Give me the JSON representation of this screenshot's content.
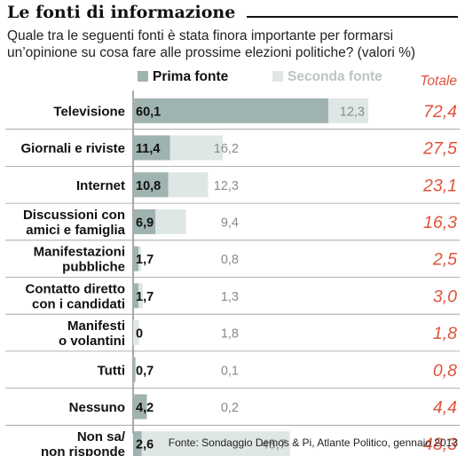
{
  "header": {
    "title": "Le fonti di informazione",
    "subtitle": "Quale tra le seguenti fonti è stata finora importante per formarsi un’opinione su cosa fare alle prossime elezioni politiche? (valori %)"
  },
  "colors": {
    "primary": "#9fb3b0",
    "secondary": "#dfe7e6",
    "total": "#e0533c",
    "divider": "#999999"
  },
  "chart_data": {
    "type": "bar",
    "stacked": true,
    "orientation": "horizontal",
    "categories": [
      "Televisione",
      "Giornali e riviste",
      "Internet",
      "Discussioni con amici e famiglia",
      "Manifestazioni pubbliche",
      "Contatto diretto con i candidati",
      "Manifesti o volantini",
      "Tutti",
      "Nessuno",
      "Non sa/ non risponde"
    ],
    "category_lines": [
      [
        "Televisione"
      ],
      [
        "Giornali e riviste"
      ],
      [
        "Internet"
      ],
      [
        "Discussioni con",
        "amici e famiglia"
      ],
      [
        "Manifestazioni",
        "pubbliche"
      ],
      [
        "Contatto diretto",
        "con i candidati"
      ],
      [
        "Manifesti",
        "o volantini"
      ],
      [
        "Tutti"
      ],
      [
        "Nessuno"
      ],
      [
        "Non sa/",
        "non risponde"
      ]
    ],
    "series": [
      {
        "name": "Prima fonte",
        "values": [
          60.1,
          11.4,
          10.8,
          6.9,
          1.7,
          1.7,
          0,
          0.7,
          4.2,
          2.6
        ]
      },
      {
        "name": "Seconda fonte",
        "values": [
          12.3,
          16.2,
          12.3,
          9.4,
          0.8,
          1.3,
          1.8,
          0.1,
          0.2,
          45.7
        ]
      }
    ],
    "primary_labels": [
      "60,1",
      "11,4",
      "10,8",
      "6,9",
      "1,7",
      "1,7",
      "0",
      "0,7",
      "4,2",
      "2,6"
    ],
    "secondary_labels": [
      "12,3",
      "16,2",
      "12,3",
      "9,4",
      "0,8",
      "1,3",
      "1,8",
      "0,1",
      "0,2",
      "45,7"
    ],
    "total_header": "Totale",
    "totals": [
      "72,4",
      "27,5",
      "23,1",
      "16,3",
      "2,5",
      "3,0",
      "1,8",
      "0,8",
      "4,4",
      "48,3"
    ],
    "xlim": [
      0,
      72.4
    ],
    "legend_position": "top"
  },
  "footer": {
    "source": "Fonte: Sondaggio Demos & Pi, Atlante Politico, gennaio 2013"
  }
}
